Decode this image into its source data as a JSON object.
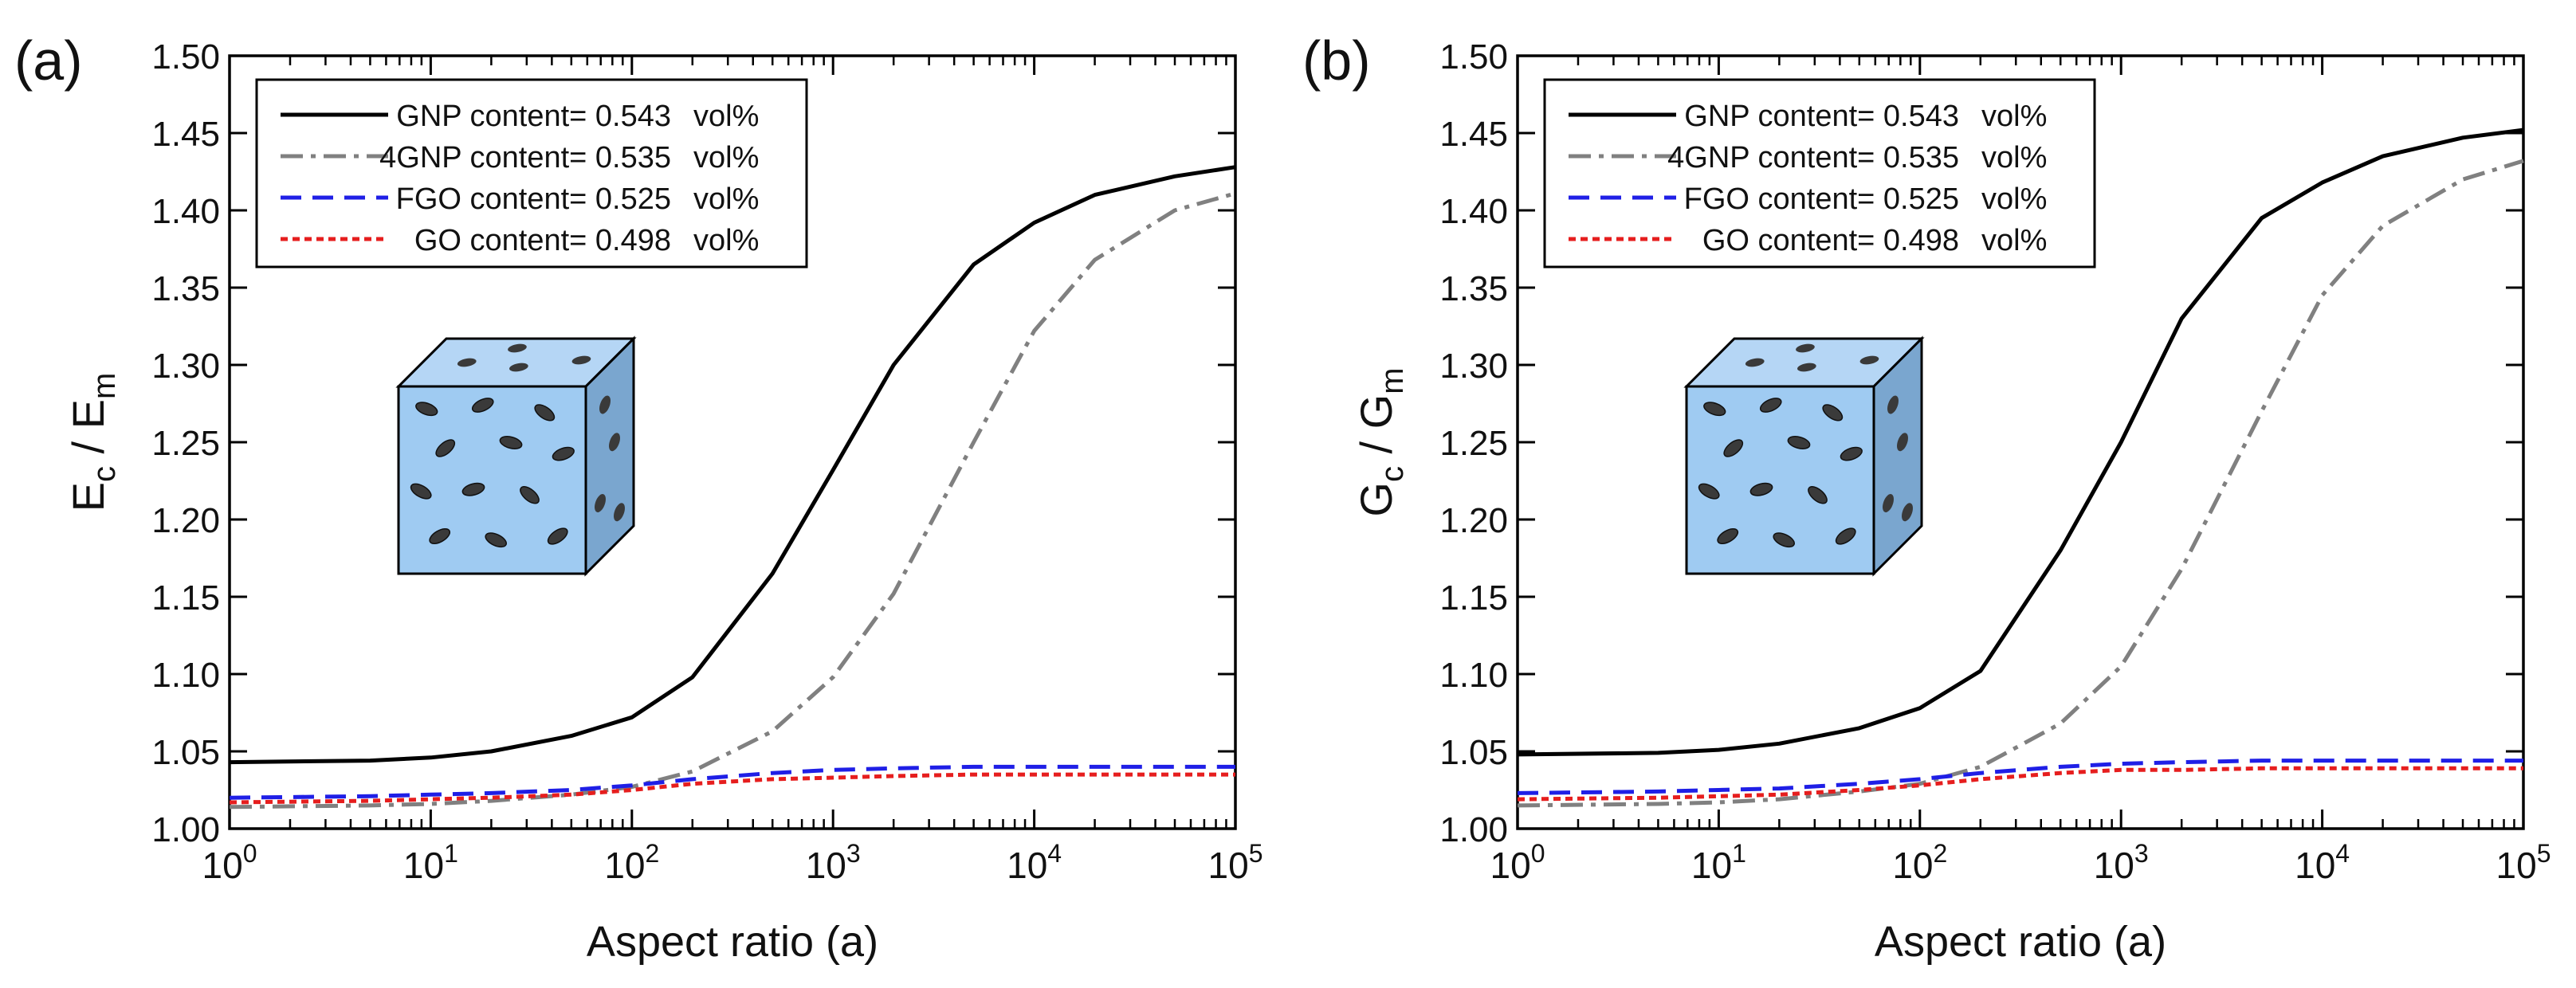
{
  "chart_data": [
    {
      "panel_label": "(a)",
      "type": "line",
      "xscale": "log",
      "xlim": [
        1,
        100000
      ],
      "ylim": [
        1.0,
        1.5
      ],
      "xlabel": "Aspect ratio (a)",
      "ylabel": {
        "main": "E",
        "sub1": "c",
        "mid": " / E",
        "sub2": "m"
      },
      "x_ticks": [
        {
          "base": "10",
          "exp": "0",
          "value": 1
        },
        {
          "base": "10",
          "exp": "1",
          "value": 10
        },
        {
          "base": "10",
          "exp": "2",
          "value": 100
        },
        {
          "base": "10",
          "exp": "3",
          "value": 1000
        },
        {
          "base": "10",
          "exp": "4",
          "value": 10000
        },
        {
          "base": "10",
          "exp": "5",
          "value": 100000
        }
      ],
      "y_ticks": [
        "1.00",
        "1.05",
        "1.10",
        "1.15",
        "1.20",
        "1.25",
        "1.30",
        "1.35",
        "1.40",
        "1.45",
        "1.50"
      ],
      "legend_position": "top-left",
      "x": [
        1,
        5,
        10,
        20,
        50,
        100,
        200,
        500,
        1000,
        2000,
        5000,
        10000,
        20000,
        50000,
        100000
      ],
      "series": [
        {
          "name": "GNP content= 0.543",
          "unit": "vol%",
          "color": "#000000",
          "dash": "solid",
          "values": [
            1.043,
            1.044,
            1.046,
            1.05,
            1.06,
            1.072,
            1.098,
            1.165,
            1.232,
            1.3,
            1.365,
            1.392,
            1.41,
            1.422,
            1.428
          ]
        },
        {
          "name": "4GNP content= 0.535",
          "unit": "vol%",
          "color": "#808080",
          "dash": "dashdot",
          "values": [
            1.014,
            1.015,
            1.016,
            1.018,
            1.022,
            1.027,
            1.037,
            1.063,
            1.098,
            1.152,
            1.25,
            1.322,
            1.368,
            1.4,
            1.411
          ]
        },
        {
          "name": "FGO content= 0.525",
          "unit": "vol%",
          "color": "#1f1fe6",
          "dash": "dashed",
          "values": [
            1.02,
            1.021,
            1.022,
            1.023,
            1.025,
            1.028,
            1.032,
            1.036,
            1.038,
            1.039,
            1.04,
            1.04,
            1.04,
            1.04,
            1.04
          ]
        },
        {
          "name": "GO content= 0.498",
          "unit": "vol%",
          "color": "#e61e1e",
          "dash": "dotted",
          "values": [
            1.017,
            1.018,
            1.019,
            1.02,
            1.022,
            1.025,
            1.029,
            1.032,
            1.033,
            1.034,
            1.035,
            1.035,
            1.035,
            1.035,
            1.035
          ]
        }
      ]
    },
    {
      "panel_label": "(b)",
      "type": "line",
      "xscale": "log",
      "xlim": [
        1,
        100000
      ],
      "ylim": [
        1.0,
        1.5
      ],
      "xlabel": "Aspect ratio (a)",
      "ylabel": {
        "main": "G",
        "sub1": "c",
        "mid": " / G",
        "sub2": "m"
      },
      "x_ticks": [
        {
          "base": "10",
          "exp": "0",
          "value": 1
        },
        {
          "base": "10",
          "exp": "1",
          "value": 10
        },
        {
          "base": "10",
          "exp": "2",
          "value": 100
        },
        {
          "base": "10",
          "exp": "3",
          "value": 1000
        },
        {
          "base": "10",
          "exp": "4",
          "value": 10000
        },
        {
          "base": "10",
          "exp": "5",
          "value": 100000
        }
      ],
      "y_ticks": [
        "1.00",
        "1.05",
        "1.10",
        "1.15",
        "1.20",
        "1.25",
        "1.30",
        "1.35",
        "1.40",
        "1.45",
        "1.50"
      ],
      "legend_position": "top-left",
      "x": [
        1,
        5,
        10,
        20,
        50,
        100,
        200,
        500,
        1000,
        2000,
        5000,
        10000,
        20000,
        50000,
        100000
      ],
      "series": [
        {
          "name": "GNP content= 0.543",
          "unit": "vol%",
          "color": "#000000",
          "dash": "solid",
          "values": [
            1.048,
            1.049,
            1.051,
            1.055,
            1.065,
            1.078,
            1.102,
            1.18,
            1.25,
            1.33,
            1.395,
            1.418,
            1.435,
            1.447,
            1.452
          ]
        },
        {
          "name": "4GNP content= 0.535",
          "unit": "vol%",
          "color": "#808080",
          "dash": "dashdot",
          "values": [
            1.015,
            1.016,
            1.017,
            1.019,
            1.024,
            1.029,
            1.04,
            1.068,
            1.105,
            1.168,
            1.27,
            1.345,
            1.39,
            1.42,
            1.432
          ]
        },
        {
          "name": "FGO content= 0.525",
          "unit": "vol%",
          "color": "#1f1fe6",
          "dash": "dashed",
          "values": [
            1.023,
            1.024,
            1.025,
            1.026,
            1.029,
            1.032,
            1.036,
            1.04,
            1.042,
            1.043,
            1.044,
            1.044,
            1.044,
            1.044,
            1.044
          ]
        },
        {
          "name": "GO content= 0.498",
          "unit": "vol%",
          "color": "#e61e1e",
          "dash": "dotted",
          "values": [
            1.019,
            1.02,
            1.021,
            1.022,
            1.025,
            1.028,
            1.032,
            1.036,
            1.038,
            1.038,
            1.039,
            1.039,
            1.039,
            1.039,
            1.039
          ]
        }
      ]
    }
  ]
}
